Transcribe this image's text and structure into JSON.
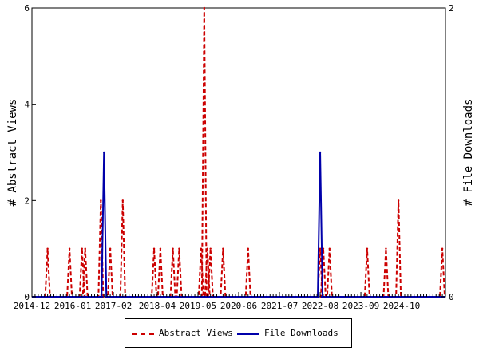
{
  "chart_data": {
    "type": "line",
    "title": "",
    "ylabel": "# Abstract Views",
    "y2label": "# File Downloads",
    "ylim": [
      0,
      6
    ],
    "y2lim": [
      0,
      2
    ],
    "yticks": [
      "0",
      "2",
      "4",
      "6"
    ],
    "y2ticks": [
      "0",
      "2"
    ],
    "xlim": [
      "2014-12",
      "2025-12"
    ],
    "xticks": [
      "2014-12",
      "2016-01",
      "2017-02",
      "2018-04",
      "2019-05",
      "2020-06",
      "2021-07",
      "2022-08",
      "2023-09",
      "2024-10"
    ],
    "grid": false,
    "legend_position": "bottom",
    "series": [
      {
        "name": "Abstract Views",
        "axis": "left",
        "color": "#cc0000",
        "dash": "dashed",
        "x": [
          "2015-03",
          "2015-05",
          "2015-07",
          "2015-10",
          "2015-12",
          "2016-02",
          "2016-04",
          "2016-05",
          "2016-08",
          "2016-10",
          "2016-12",
          "2017-01",
          "2017-03",
          "2017-05",
          "2017-07",
          "2017-09",
          "2017-11",
          "2018-01",
          "2018-03",
          "2018-04",
          "2018-05",
          "2018-07",
          "2018-09",
          "2018-11",
          "2019-01",
          "2019-03",
          "2019-05",
          "2019-06",
          "2019-07",
          "2019-08",
          "2019-09",
          "2019-11",
          "2020-01",
          "2020-03",
          "2020-05",
          "2020-07",
          "2020-09",
          "2020-11",
          "2021-01",
          "2021-03",
          "2021-05",
          "2021-07",
          "2021-09",
          "2021-11",
          "2022-01",
          "2022-03",
          "2022-05",
          "2022-07",
          "2022-08",
          "2022-09",
          "2022-10",
          "2022-11",
          "2022-12",
          "2023-01",
          "2023-03",
          "2023-05",
          "2023-07",
          "2023-09",
          "2023-11",
          "2024-01",
          "2024-03",
          "2024-05",
          "2024-07",
          "2024-09",
          "2024-11",
          "2025-01",
          "2025-03",
          "2025-05",
          "2025-07",
          "2025-09",
          "2025-11"
        ],
        "y": [
          0,
          1,
          0,
          0,
          1,
          0,
          1,
          1,
          0,
          2,
          0,
          1,
          0,
          2,
          0,
          0,
          0,
          0,
          1,
          0,
          1,
          0,
          1,
          1,
          0,
          0,
          0,
          1,
          6,
          1,
          1,
          0,
          1,
          0,
          0,
          0,
          1,
          0,
          0,
          0,
          0,
          0,
          0,
          0,
          0,
          0,
          0,
          0,
          1,
          1,
          0,
          1,
          0,
          0,
          0,
          0,
          0,
          0,
          1,
          0,
          0,
          1,
          0,
          2,
          0,
          0,
          0,
          0,
          0,
          0,
          1
        ]
      },
      {
        "name": "File Downloads",
        "axis": "right",
        "color": "#0000aa",
        "dash": "solid",
        "x": [
          "2016-10",
          "2016-11",
          "2016-12",
          "2017-01",
          "2022-07",
          "2022-08",
          "2022-09"
        ],
        "y": [
          0,
          1,
          0,
          0,
          0,
          1,
          0
        ]
      }
    ]
  }
}
